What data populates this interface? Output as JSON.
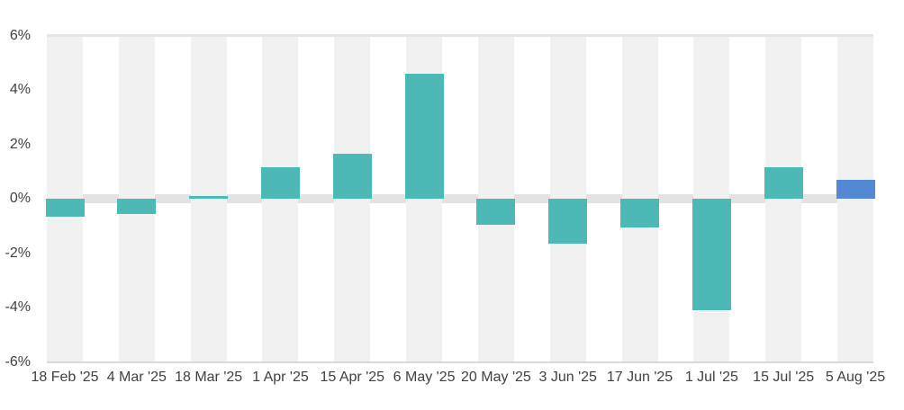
{
  "chart_data": {
    "type": "bar",
    "title": "",
    "xlabel": "",
    "ylabel": "",
    "unit": "%",
    "categories": [
      "18 Feb '25",
      "4 Mar '25",
      "18 Mar '25",
      "1 Apr '25",
      "15 Apr '25",
      "6 May '25",
      "20 May '25",
      "3 Jun '25",
      "17 Jun '25",
      "1 Jul '25",
      "15 Jul '25",
      "5 Aug '25"
    ],
    "values": [
      -0.65,
      -0.55,
      0.1,
      1.15,
      1.65,
      4.6,
      -0.95,
      -1.65,
      -1.05,
      -4.1,
      1.15,
      0.7
    ],
    "ylim": [
      -6,
      6
    ],
    "yticks": [
      6,
      4,
      2,
      0,
      -2,
      -4,
      -6
    ],
    "ytick_labels": [
      "6%",
      "4%",
      "2%",
      "0%",
      "-2%",
      "-4%",
      "-6%"
    ],
    "legend": "none",
    "grid": "top and bottom horizontal border lines only; thick gray band at zero; light gray vertical background band behind each bar",
    "highlighted_bar_index": 11,
    "colors": {
      "bar": "#4DB9B6",
      "bar_highlight": "#5289D2",
      "column_band": "#F1F1F1",
      "zero_band": "#E3E3E3",
      "top_line": "#E6E6E6",
      "bottom_line": "#D9D9D9",
      "axis_text": "#414141",
      "background": "#FFFFFF"
    }
  }
}
